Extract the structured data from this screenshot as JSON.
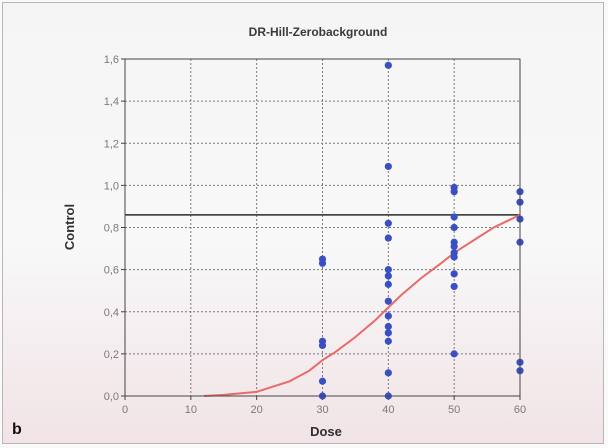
{
  "panel_label": "b",
  "chart_data": {
    "type": "scatter",
    "title": "DR-Hill-Zerobackground",
    "xlabel": "Dose",
    "ylabel": "Control",
    "xlim": [
      0,
      60
    ],
    "ylim": [
      0,
      1.6
    ],
    "xticks": [
      0,
      10,
      20,
      30,
      40,
      50,
      60
    ],
    "xtick_labels": [
      "0",
      "10",
      "20",
      "30",
      "40",
      "50",
      "60"
    ],
    "yticks": [
      0,
      0.2,
      0.4,
      0.6,
      0.8,
      1.0,
      1.2,
      1.4,
      1.6
    ],
    "ytick_labels": [
      "0,0",
      "0,2",
      "0,4",
      "0,6",
      "0,8",
      "1,0",
      "1,2",
      "1,4",
      "1,6"
    ],
    "grid": true,
    "reference_line_y": 0.86,
    "points": [
      {
        "x": 30,
        "y": 0.65
      },
      {
        "x": 30,
        "y": 0.63
      },
      {
        "x": 30,
        "y": 0.26
      },
      {
        "x": 30,
        "y": 0.24
      },
      {
        "x": 30,
        "y": 0.07
      },
      {
        "x": 30,
        "y": 0.0
      },
      {
        "x": 40,
        "y": 1.57
      },
      {
        "x": 40,
        "y": 1.09
      },
      {
        "x": 40,
        "y": 0.82
      },
      {
        "x": 40,
        "y": 0.75
      },
      {
        "x": 40,
        "y": 0.6
      },
      {
        "x": 40,
        "y": 0.57
      },
      {
        "x": 40,
        "y": 0.53
      },
      {
        "x": 40,
        "y": 0.45
      },
      {
        "x": 40,
        "y": 0.38
      },
      {
        "x": 40,
        "y": 0.33
      },
      {
        "x": 40,
        "y": 0.3
      },
      {
        "x": 40,
        "y": 0.26
      },
      {
        "x": 40,
        "y": 0.11
      },
      {
        "x": 40,
        "y": 0.0
      },
      {
        "x": 50,
        "y": 0.99
      },
      {
        "x": 50,
        "y": 0.97
      },
      {
        "x": 50,
        "y": 0.85
      },
      {
        "x": 50,
        "y": 0.8
      },
      {
        "x": 50,
        "y": 0.73
      },
      {
        "x": 50,
        "y": 0.71
      },
      {
        "x": 50,
        "y": 0.68
      },
      {
        "x": 50,
        "y": 0.66
      },
      {
        "x": 50,
        "y": 0.58
      },
      {
        "x": 50,
        "y": 0.52
      },
      {
        "x": 50,
        "y": 0.2
      },
      {
        "x": 60,
        "y": 0.97
      },
      {
        "x": 60,
        "y": 0.92
      },
      {
        "x": 60,
        "y": 0.84
      },
      {
        "x": 60,
        "y": 0.73
      },
      {
        "x": 60,
        "y": 0.16
      },
      {
        "x": 60,
        "y": 0.12
      }
    ],
    "fit_curve": {
      "model": "Hill",
      "points": [
        {
          "x": 12,
          "y": 0.0
        },
        {
          "x": 15,
          "y": 0.005
        },
        {
          "x": 20,
          "y": 0.02
        },
        {
          "x": 25,
          "y": 0.07
        },
        {
          "x": 28,
          "y": 0.12
        },
        {
          "x": 30,
          "y": 0.17
        },
        {
          "x": 32,
          "y": 0.21
        },
        {
          "x": 35,
          "y": 0.28
        },
        {
          "x": 38,
          "y": 0.36
        },
        {
          "x": 40,
          "y": 0.42
        },
        {
          "x": 42,
          "y": 0.48
        },
        {
          "x": 45,
          "y": 0.56
        },
        {
          "x": 48,
          "y": 0.63
        },
        {
          "x": 50,
          "y": 0.68
        },
        {
          "x": 53,
          "y": 0.74
        },
        {
          "x": 56,
          "y": 0.8
        },
        {
          "x": 58,
          "y": 0.83
        },
        {
          "x": 60,
          "y": 0.86
        }
      ]
    },
    "colors": {
      "points": "#3a4fc4",
      "fit": "#e86a6a",
      "reference_line": "#2a2a2a",
      "grid": "#7a7a7a",
      "axis": "#444444"
    }
  }
}
